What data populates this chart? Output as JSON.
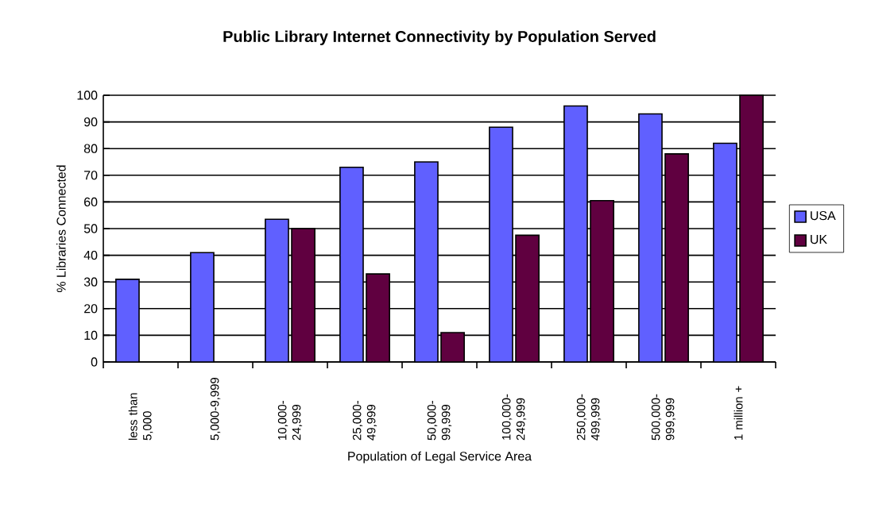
{
  "chart_data": {
    "type": "bar",
    "title": "Public Library Internet Connectivity by Population Served",
    "xlabel": "Population of Legal Service Area",
    "ylabel": "% Libraries Connected",
    "categories": [
      "less than 5,000",
      "5,000-9,999",
      "10,000-24,999",
      "25,000-49,999",
      "50,000-99,999",
      "100,000-249,999",
      "250,000-499,999",
      "500,000-999,999",
      "1 million +"
    ],
    "series": [
      {
        "name": "USA",
        "color": "#6060ff",
        "values": [
          31,
          41,
          53.5,
          73,
          75,
          88,
          96,
          93,
          82
        ]
      },
      {
        "name": "UK",
        "color": "#600040",
        "values": [
          null,
          null,
          50,
          33,
          11,
          47.5,
          60.5,
          78,
          100
        ]
      }
    ],
    "ylim": [
      0,
      100
    ],
    "yticks": [
      0,
      10,
      20,
      30,
      40,
      50,
      60,
      70,
      80,
      90,
      100
    ],
    "grid": "y",
    "legend": "right"
  }
}
